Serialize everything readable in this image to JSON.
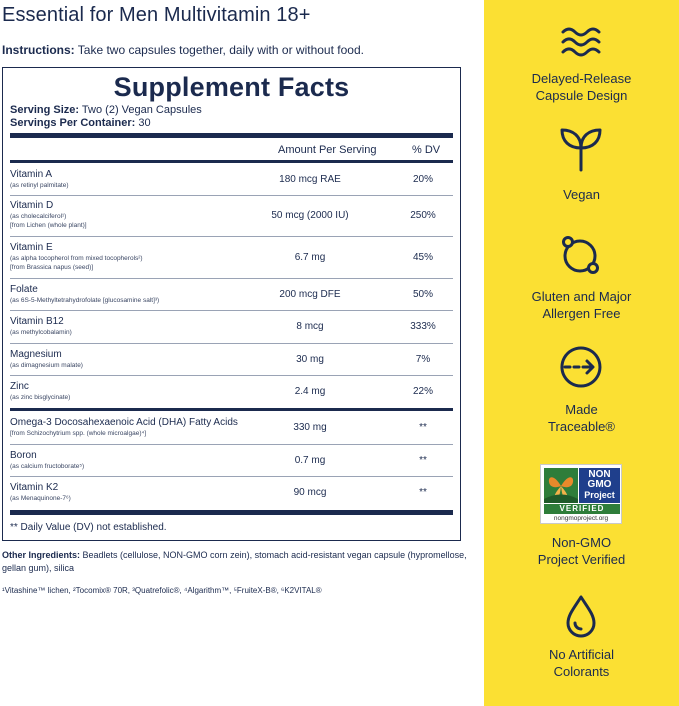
{
  "product": {
    "title": "Essential for Men Multivitamin 18+",
    "instructions_label": "Instructions:",
    "instructions_text": " Take two capsules together, daily with or without food."
  },
  "facts": {
    "title": "Supplement Facts",
    "serving_size_label": "Serving Size:",
    "serving_size_value": " Two (2) Vegan Capsules",
    "servings_label": "Servings Per Container:",
    "servings_value": " 30",
    "header_amount": "Amount Per Serving",
    "header_dv": "% DV",
    "rows": [
      {
        "name": "Vitamin A",
        "sub1": "(as retinyl palmitate)",
        "sub2": "",
        "amount": "180 mcg RAE",
        "dv": "20%"
      },
      {
        "name": "Vitamin D",
        "sub1": "(as cholecalciferol¹)",
        "sub2": "[from Lichen (whole plant)]",
        "amount": "50 mcg (2000 IU)",
        "dv": "250%"
      },
      {
        "name": "Vitamin E",
        "sub1": "(as alpha tocopherol from mixed tocopherols²)",
        "sub2": "[from Brassica napus (seed)]",
        "amount": "6.7 mg",
        "dv": "45%"
      },
      {
        "name": "Folate",
        "sub1": "(as 6S-5-Methyltetrahydrofolate [glucosamine salt]³)",
        "sub2": "",
        "amount": "200 mcg DFE",
        "dv": "50%"
      },
      {
        "name": "Vitamin B12",
        "sub1": "(as methylcobalamin)",
        "sub2": "",
        "amount": "8 mcg",
        "dv": "333%"
      },
      {
        "name": "Magnesium",
        "sub1": "(as dimagnesium malate)",
        "sub2": "",
        "amount": "30 mg",
        "dv": "7%"
      },
      {
        "name": "Zinc",
        "sub1": "(as zinc bisglycinate)",
        "sub2": "",
        "amount": "2.4 mg",
        "dv": "22%"
      },
      {
        "name": "Omega-3 Docosahexaenoic Acid (DHA) Fatty Acids",
        "sub1": "[from Schizochytrium spp. (whole microalgae)⁴]",
        "sub2": "",
        "amount": "330 mg",
        "dv": "**"
      },
      {
        "name": "Boron",
        "sub1": "(as calcium fructoborate⁵)",
        "sub2": "",
        "amount": "0.7 mg",
        "dv": "**"
      },
      {
        "name": "Vitamin K2",
        "sub1": "(as Menaquinone-7⁶)",
        "sub2": "",
        "amount": "90 mcg",
        "dv": "**"
      }
    ],
    "footnote": "** Daily Value (DV) not established."
  },
  "other": {
    "label": "Other Ingredients:",
    "text": " Beadlets (cellulose, NON-GMO corn zein), stomach acid-resistant vegan capsule (hypromellose, gellan gum), silica",
    "trademarks": "¹Vitashine™ lichen, ²Tocomix® 70R, ³Quatrefolic®, ⁴Algarithm™, ⁵FruiteX-B®, ⁶K2VITAL®"
  },
  "features": [
    {
      "icon": "waves-icon",
      "line1": "Delayed-Release",
      "line2": "Capsule Design"
    },
    {
      "icon": "sprout-icon",
      "line1": "Vegan",
      "line2": ""
    },
    {
      "icon": "allergen-free-icon",
      "line1": "Gluten and Major",
      "line2": "Allergen Free"
    },
    {
      "icon": "traceable-arrow-icon",
      "line1": "Made",
      "line2": "Traceable®"
    },
    {
      "icon": "non-gmo-badge",
      "line1": "Non-GMO",
      "line2": "Project Verified"
    },
    {
      "icon": "drop-icon",
      "line1": "No Artificial",
      "line2": "Colorants"
    }
  ],
  "badge": {
    "line1": "NON",
    "line2": "GMO",
    "line3": "Project",
    "verified": "VERIFIED",
    "url": "nongmoproject.org"
  },
  "colors": {
    "navy": "#1b2a4e",
    "yellow": "#fbe033",
    "badge_green": "#2e7d3a",
    "badge_blue": "#1f3f8c",
    "badge_orange": "#e8892b"
  }
}
